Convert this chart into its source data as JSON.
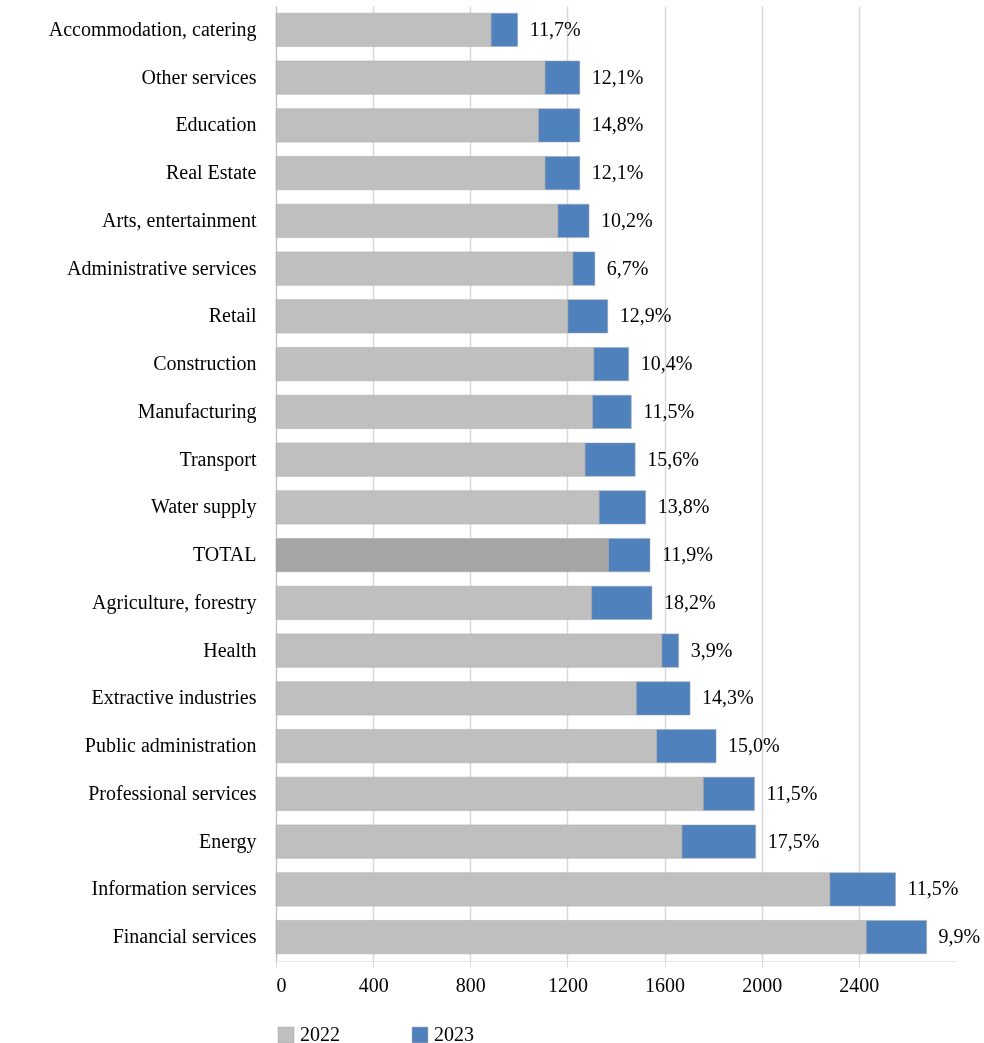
{
  "chart_data": {
    "type": "bar",
    "orientation": "horizontal",
    "stacked": true,
    "categories": [
      "Accommodation, catering",
      "Other services",
      "Education",
      "Real Estate",
      "Arts, entertainment",
      "Administrative services",
      "Retail",
      "Construction",
      "Manufacturing",
      "Transport",
      "Water supply",
      "TOTAL",
      "Agriculture, forestry",
      "Health",
      "Extractive industries",
      "Public administration",
      "Professional services",
      "Energy",
      "Information services",
      "Financial services"
    ],
    "series": [
      {
        "name": "2022",
        "color": "#bfbfbf",
        "colors": [
          "#bfbfbf",
          "#bfbfbf",
          "#bfbfbf",
          "#bfbfbf",
          "#bfbfbf",
          "#bfbfbf",
          "#bfbfbf",
          "#bfbfbf",
          "#bfbfbf",
          "#bfbfbf",
          "#bfbfbf",
          "#a5a5a5",
          "#bfbfbf",
          "#bfbfbf",
          "#bfbfbf",
          "#bfbfbf",
          "#bfbfbf",
          "#bfbfbf",
          "#bfbfbf",
          "#bfbfbf"
        ],
        "values": [
          886,
          1108,
          1081,
          1108,
          1161,
          1223,
          1202,
          1309,
          1304,
          1273,
          1331,
          1369,
          1300,
          1589,
          1484,
          1568,
          1760,
          1672,
          2281,
          2431
        ]
      },
      {
        "name": "2023",
        "color": "#4f81bd",
        "values": [
          109,
          143,
          170,
          143,
          128,
          90,
          164,
          143,
          159,
          206,
          191,
          171,
          248,
          69,
          221,
          244,
          210,
          303,
          270,
          248
        ]
      }
    ],
    "annotations": [
      {
        "text": "11,7%",
        "x": 995,
        "y": "Accommodation, catering"
      },
      {
        "text": "12,1%",
        "x": 1251,
        "y": "Other services"
      },
      {
        "text": "14,8%",
        "x": 1251,
        "y": "Education"
      },
      {
        "text": "12,1%",
        "x": 1251,
        "y": "Real Estate"
      },
      {
        "text": "10,2%",
        "x": 1289,
        "y": "Arts, entertainment"
      },
      {
        "text": "6,7%",
        "x": 1313,
        "y": "Administrative services"
      },
      {
        "text": "12,9%",
        "x": 1366,
        "y": "Retail"
      },
      {
        "text": "10,4%",
        "x": 1452,
        "y": "Construction"
      },
      {
        "text": "11,5%",
        "x": 1463,
        "y": "Manufacturing"
      },
      {
        "text": "15,6%",
        "x": 1479,
        "y": "Transport"
      },
      {
        "text": "13,8%",
        "x": 1522,
        "y": "Water supply"
      },
      {
        "text": "11,9%",
        "x": 1540,
        "y": "TOTAL"
      },
      {
        "text": "18,2%",
        "x": 1548,
        "y": "Agriculture, forestry"
      },
      {
        "text": "3,9%",
        "x": 1658,
        "y": "Health"
      },
      {
        "text": "14,3%",
        "x": 1705,
        "y": "Extractive industries"
      },
      {
        "text": "15,0%",
        "x": 1812,
        "y": "Public administration"
      },
      {
        "text": "11,5%",
        "x": 1970,
        "y": "Professional services"
      },
      {
        "text": "17,5%",
        "x": 1975,
        "y": "Energy"
      },
      {
        "text": "11,5%",
        "x": 2551,
        "y": "Information services"
      },
      {
        "text": "9,9%",
        "x": 2679,
        "y": "Financial services"
      }
    ],
    "xlim": [
      0,
      2800
    ],
    "xticks": [
      0,
      400,
      800,
      1200,
      1600,
      2000,
      2400
    ],
    "grid": "x",
    "legend": "bottom"
  }
}
